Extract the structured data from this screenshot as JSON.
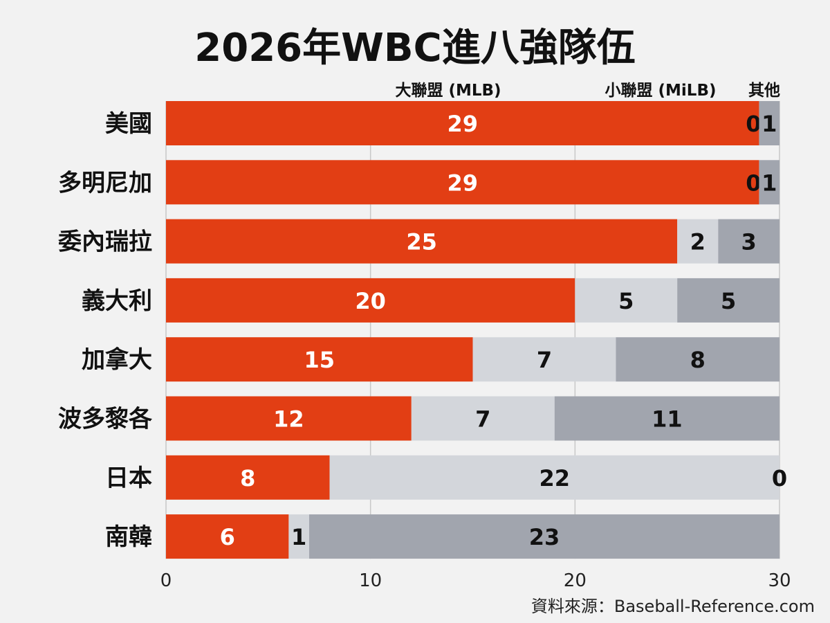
{
  "chart_data": {
    "type": "bar",
    "orientation": "horizontal",
    "stacked": true,
    "title": "2026年WBC進八強隊伍",
    "categories": [
      "美國",
      "多明尼加",
      "委內瑞拉",
      "義大利",
      "加拿大",
      "波多黎各",
      "日本",
      "南韓"
    ],
    "series": [
      {
        "name": "大聯盟 (MLB)",
        "color": "#e23e14",
        "label_color": "#ffffff",
        "values": [
          29,
          29,
          25,
          20,
          15,
          12,
          8,
          6
        ]
      },
      {
        "name": "小聯盟 (MiLB)",
        "color": "#d3d6db",
        "label_color": "#111111",
        "values": [
          0,
          0,
          2,
          5,
          7,
          7,
          22,
          1
        ]
      },
      {
        "name": "其他",
        "color": "#a1a5ae",
        "label_color": "#111111",
        "values": [
          1,
          1,
          3,
          5,
          8,
          11,
          0,
          23
        ]
      }
    ],
    "xlim": [
      0,
      30
    ],
    "xticks": [
      0,
      10,
      20,
      30
    ],
    "grid": true,
    "legend": "top",
    "source": "資料來源：Baseball-Reference.com"
  }
}
